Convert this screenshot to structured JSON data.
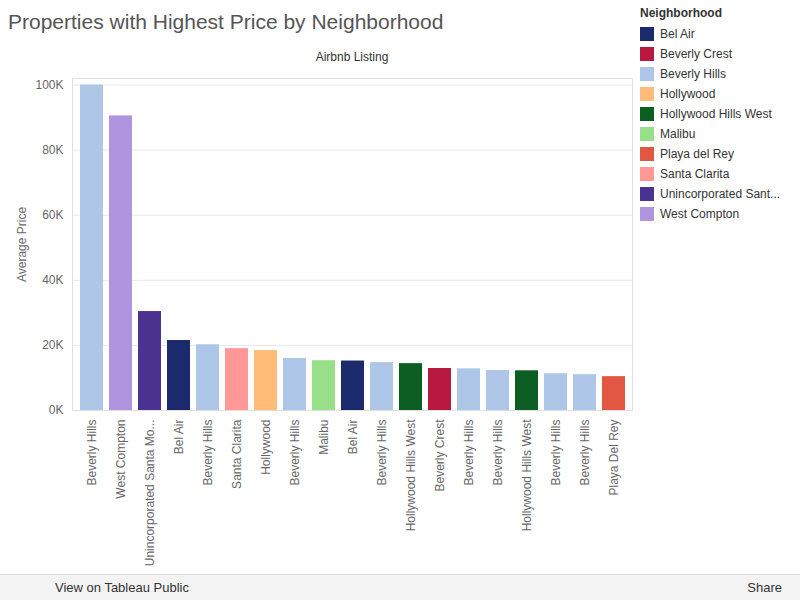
{
  "chart_data": {
    "type": "bar",
    "title": "Properties with Highest Price by Neighborhood",
    "subtitle": "Airbnb Listing",
    "y_label": "Average Price",
    "legend_title": "Neighborhood",
    "legend": "right",
    "grid": true,
    "stacked": true,
    "footer": [
      "View on Tableau Public",
      "Share"
    ],
    "categories": [
      "Beverly Hills",
      "West Compton",
      "Unincorporated Santa Mo...",
      "Bel Air",
      "Beverly Hills",
      "Santa Clarita",
      "Hollywood",
      "Beverly Hills",
      "Malibu",
      "Bel Air",
      "Beverly Hills",
      "Hollywood Hills West",
      "Beverly Crest",
      "Beverly Hills",
      "Beverly Hills",
      "Hollywood Hills West",
      "Beverly Hills",
      "Beverly Hills",
      "Playa Del Rey"
    ],
    "series": [
      {
        "name": "Bel Air",
        "color": "#1a2a6c",
        "values": [
          null,
          null,
          null,
          21500,
          null,
          null,
          null,
          null,
          null,
          15200,
          null,
          null,
          null,
          null,
          null,
          null,
          null,
          null,
          null
        ]
      },
      {
        "name": "Beverly Crest",
        "color": "#b8193f",
        "values": [
          null,
          null,
          null,
          null,
          null,
          null,
          null,
          null,
          null,
          null,
          null,
          null,
          12900,
          null,
          null,
          null,
          null,
          null,
          null
        ]
      },
      {
        "name": "Beverly Hills",
        "color": "#aec7e8",
        "values": [
          100000,
          null,
          null,
          null,
          20200,
          null,
          null,
          16000,
          null,
          null,
          14700,
          null,
          null,
          12800,
          12300,
          null,
          11300,
          11000,
          null
        ]
      },
      {
        "name": "Hollywood",
        "color": "#ffbb78",
        "values": [
          null,
          null,
          null,
          null,
          null,
          null,
          18400,
          null,
          null,
          null,
          null,
          null,
          null,
          null,
          null,
          null,
          null,
          null,
          null
        ]
      },
      {
        "name": "Hollywood Hills West",
        "color": "#0c5e23",
        "values": [
          null,
          null,
          null,
          null,
          null,
          null,
          null,
          null,
          null,
          null,
          null,
          14400,
          null,
          null,
          null,
          12200,
          null,
          null,
          null
        ]
      },
      {
        "name": "Malibu",
        "color": "#98df8a",
        "values": [
          null,
          null,
          null,
          null,
          null,
          null,
          null,
          null,
          15300,
          null,
          null,
          null,
          null,
          null,
          null,
          null,
          null,
          null,
          null
        ]
      },
      {
        "name": "Playa del Rey",
        "color": "#e15742",
        "values": [
          null,
          null,
          null,
          null,
          null,
          null,
          null,
          null,
          null,
          null,
          null,
          null,
          null,
          null,
          null,
          null,
          null,
          null,
          10400
        ]
      },
      {
        "name": "Santa Clarita",
        "color": "#ff9896",
        "values": [
          null,
          null,
          null,
          null,
          null,
          19000,
          null,
          null,
          null,
          null,
          null,
          null,
          null,
          null,
          null,
          null,
          null,
          null,
          null
        ]
      },
      {
        "name": "Unincorporated Sant...",
        "color": "#4a3291",
        "values": [
          null,
          null,
          30400,
          null,
          null,
          null,
          null,
          null,
          null,
          null,
          null,
          null,
          null,
          null,
          null,
          null,
          null,
          null,
          null
        ]
      },
      {
        "name": "West Compton",
        "color": "#b094e0",
        "values": [
          null,
          90500,
          null,
          null,
          null,
          null,
          null,
          null,
          null,
          null,
          null,
          null,
          null,
          null,
          null,
          null,
          null,
          null,
          null
        ]
      }
    ],
    "ylim": [
      0,
      102000
    ],
    "yticks": [
      {
        "value": 0,
        "label": "0K"
      },
      {
        "value": 20000,
        "label": "20K"
      },
      {
        "value": 40000,
        "label": "40K"
      },
      {
        "value": 60000,
        "label": "60K"
      },
      {
        "value": 80000,
        "label": "80K"
      },
      {
        "value": 100000,
        "label": "100K"
      }
    ]
  }
}
